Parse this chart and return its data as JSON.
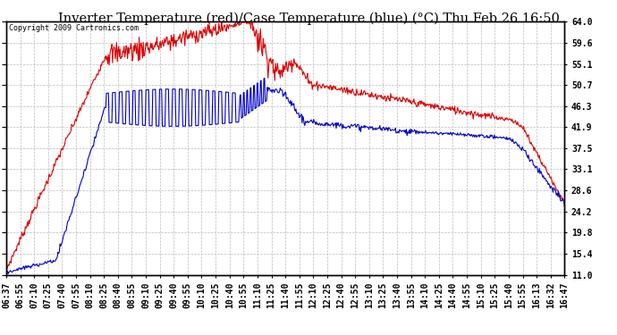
{
  "title": "Inverter Temperature (red)/Case Temperature (blue) (°C) Thu Feb 26 16:50",
  "copyright": "Copyright 2009 Cartronics.com",
  "ylabel_right_ticks": [
    11.0,
    15.4,
    19.8,
    24.2,
    28.6,
    33.1,
    37.5,
    41.9,
    46.3,
    50.7,
    55.1,
    59.6,
    64.0
  ],
  "ymin": 11.0,
  "ymax": 64.0,
  "background_color": "#ffffff",
  "plot_bg_color": "#ffffff",
  "grid_color": "#bbbbbb",
  "red_color": "#dd0000",
  "blue_color": "#0000cc",
  "title_fontsize": 10.5,
  "tick_fontsize": 7,
  "x_labels": [
    "06:37",
    "06:55",
    "07:10",
    "07:25",
    "07:40",
    "07:55",
    "08:10",
    "08:25",
    "08:40",
    "08:55",
    "09:10",
    "09:25",
    "09:40",
    "09:55",
    "10:10",
    "10:25",
    "10:40",
    "10:55",
    "11:10",
    "11:25",
    "11:40",
    "11:55",
    "12:10",
    "12:25",
    "12:40",
    "12:55",
    "13:10",
    "13:25",
    "13:40",
    "13:55",
    "14:10",
    "14:25",
    "14:40",
    "14:55",
    "15:10",
    "15:25",
    "15:40",
    "15:55",
    "16:13",
    "16:32",
    "16:47"
  ]
}
